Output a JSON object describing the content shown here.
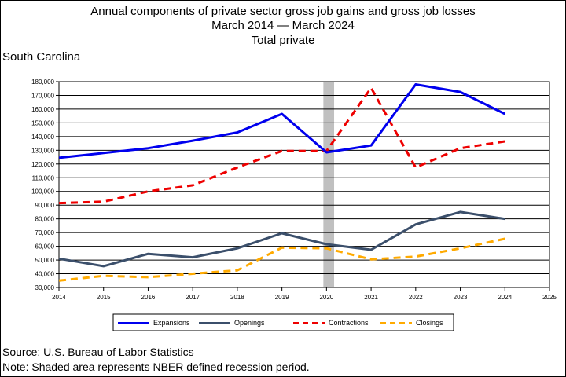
{
  "title_lines": [
    "Annual components of private sector gross job gains and gross job losses",
    "March 2014 — March 2024",
    "Total private"
  ],
  "region": "South Carolina",
  "source": "Source: U.S. Bureau of Labor Statistics",
  "note": "Note: Shaded area represents NBER defined recession period.",
  "chart_data": {
    "type": "line",
    "x": [
      2014,
      2015,
      2016,
      2017,
      2018,
      2019,
      2020,
      2021,
      2022,
      2023,
      2024
    ],
    "xlim": [
      2014,
      2025
    ],
    "xticks": [
      2014,
      2015,
      2016,
      2017,
      2018,
      2019,
      2020,
      2021,
      2022,
      2023,
      2024,
      2025
    ],
    "ylim": [
      30000,
      180000
    ],
    "ytick_step": 10000,
    "grid": "horizontal",
    "legend_position": "bottom",
    "recession_band": [
      2020,
      2020.17
    ],
    "series": [
      {
        "name": "Expansions",
        "color": "#0000ee",
        "dash": "solid",
        "values": [
          124500,
          128000,
          131500,
          137000,
          143000,
          156500,
          128500,
          133500,
          178000,
          172500,
          156500
        ]
      },
      {
        "name": "Openings",
        "color": "#3b4f6b",
        "dash": "solid",
        "values": [
          51000,
          45500,
          54500,
          52000,
          58500,
          69500,
          61500,
          57500,
          76000,
          85000,
          80000
        ]
      },
      {
        "name": "Contractions",
        "color": "#ee0000",
        "dash": "dashed",
        "values": [
          91500,
          92500,
          100000,
          104500,
          117500,
          129500,
          129500,
          175500,
          117500,
          131500,
          136500
        ]
      },
      {
        "name": "Closings",
        "color": "#ffaa00",
        "dash": "dashed",
        "values": [
          35000,
          38500,
          37500,
          40000,
          42500,
          59000,
          58500,
          50500,
          52500,
          58500,
          65500
        ]
      }
    ]
  }
}
